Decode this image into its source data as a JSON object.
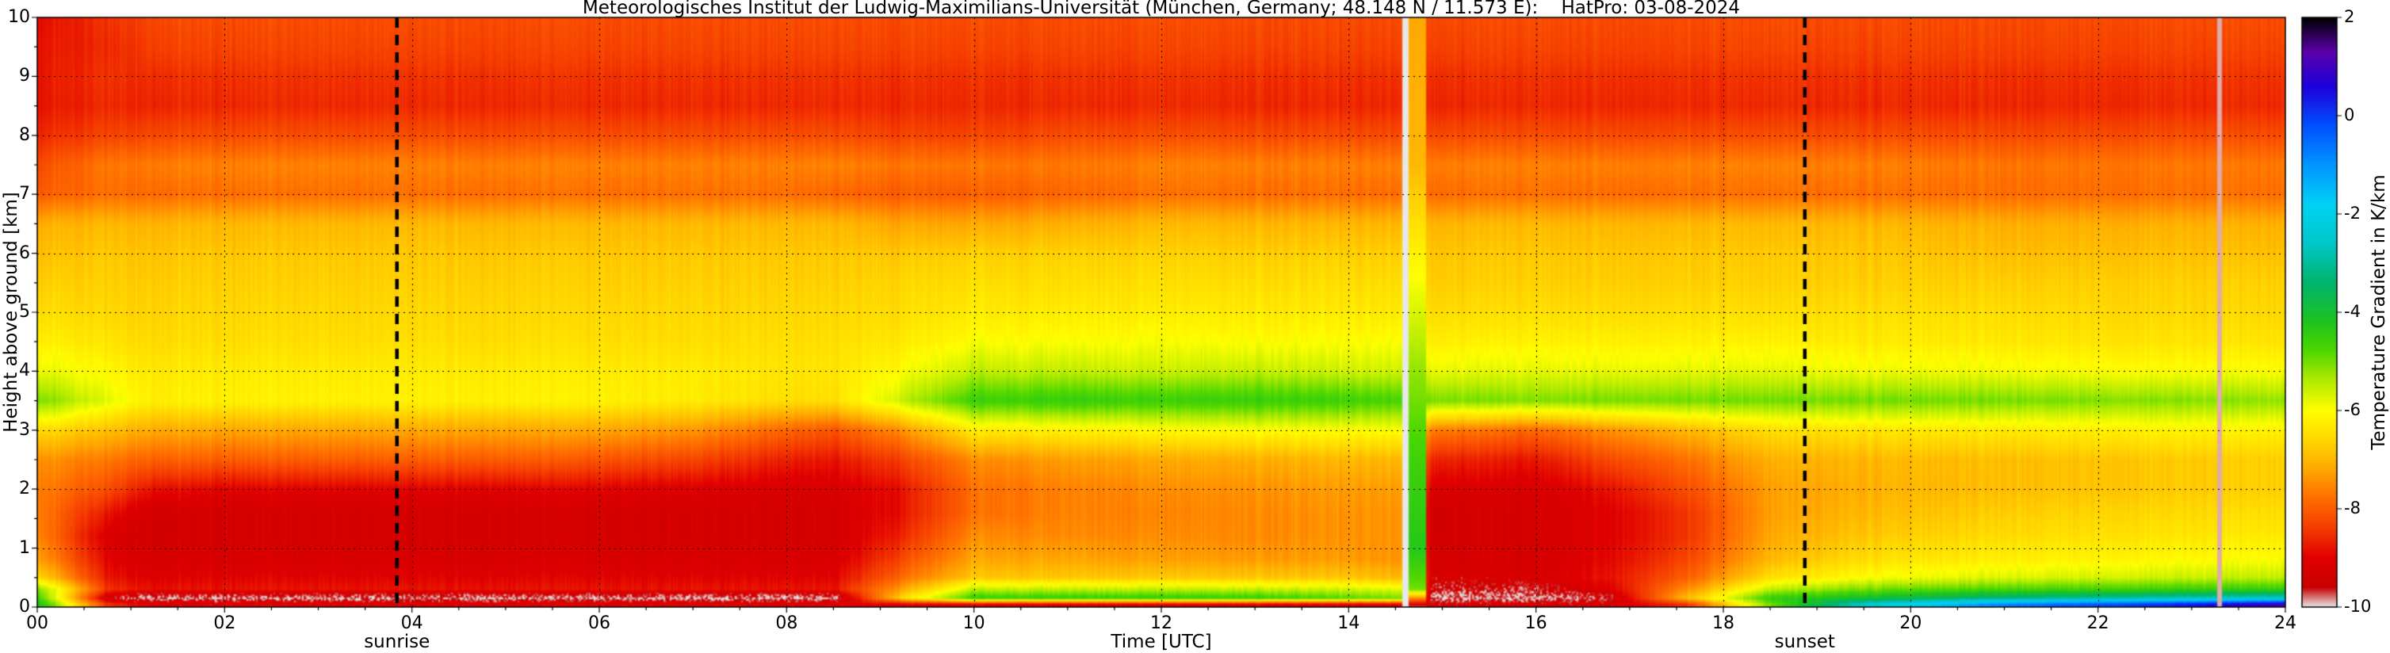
{
  "title": "Meteorologisches Institut der Ludwig-Maximilians-Universität (München, Germany; 48.148 N / 11.573 E):    HatPro: 03-08-2024",
  "x_axis": {
    "label": "Time [UTC]",
    "min": 0,
    "max": 24,
    "tick_values": [
      0,
      2,
      4,
      6,
      8,
      10,
      12,
      14,
      16,
      18,
      20,
      22,
      24
    ],
    "tick_labels": [
      "00",
      "02",
      "04",
      "06",
      "08",
      "10",
      "12",
      "14",
      "16",
      "18",
      "20",
      "22",
      "24"
    ],
    "minor_tick_step": 0.5
  },
  "y_axis": {
    "label": "Height above ground [km]",
    "min": 0,
    "max": 10,
    "tick_values": [
      0,
      1,
      2,
      3,
      4,
      5,
      6,
      7,
      8,
      9,
      10
    ],
    "tick_labels": [
      "0",
      "1",
      "2",
      "3",
      "4",
      "5",
      "6",
      "7",
      "8",
      "9",
      "10"
    ],
    "minor_tick_step": 0.5
  },
  "colorbar": {
    "label": "Temperature Gradient in K/km",
    "min": -10,
    "max": 2,
    "tick_values": [
      2,
      0,
      -2,
      -4,
      -6,
      -8,
      -10
    ],
    "tick_labels": [
      "2",
      "0",
      "-2",
      "-4",
      "-6",
      "-8",
      "-10"
    ]
  },
  "annotations": {
    "sunrise_label": "sunrise",
    "sunrise_time": 3.84,
    "sunset_label": "sunset",
    "sunset_time": 18.87
  },
  "chart_data": {
    "type": "heatmap",
    "x_units": "hours UTC",
    "y_units": "km above ground",
    "value_units": "K/km",
    "grid": {
      "x_step": 2,
      "y_step": 1,
      "style": "dotted"
    },
    "x_hours": [
      0,
      0.75,
      1.25,
      2,
      3,
      4,
      5,
      6,
      7,
      8,
      8.5,
      9.25,
      10,
      11,
      12,
      13,
      14,
      14.6,
      14.9,
      16,
      16.8,
      17.6,
      18.5,
      19.5,
      21,
      22.5,
      24
    ],
    "heights_km": [
      0.05,
      0.15,
      0.3,
      0.5,
      0.8,
      1.2,
      1.6,
      2.0,
      2.5,
      3.0,
      3.5,
      4.0,
      4.5,
      5.0,
      5.5,
      6.0,
      6.5,
      7.0,
      7.5,
      8.0,
      8.5,
      9.0,
      9.5,
      10.0
    ],
    "values_K_per_km": [
      [
        -4.0,
        -8.5,
        -9.0,
        -9.0,
        -9.0,
        -9.0,
        -9.0,
        -9.0,
        -9.0,
        -9.0,
        -9.0,
        -9.0,
        -9.0,
        -9.0,
        -9.0,
        -9.0,
        -9.0,
        -9.0,
        -9.2,
        -9.2,
        -9.2,
        -8.5,
        -5.0,
        -2.5,
        -0.8,
        0.0,
        1.0
      ],
      [
        -4.5,
        -9.5,
        -9.9,
        -9.9,
        -9.9,
        -9.9,
        -9.9,
        -9.9,
        -9.9,
        -9.9,
        -9.9,
        -6.5,
        -4.5,
        -4.5,
        -4.5,
        -4.5,
        -4.8,
        -5.0,
        -9.9,
        -9.9,
        -9.5,
        -7.0,
        -4.5,
        -4.0,
        -3.2,
        -2.8,
        -2.5
      ],
      [
        -5.0,
        -8.5,
        -8.8,
        -8.8,
        -8.8,
        -8.8,
        -8.8,
        -8.8,
        -8.8,
        -8.8,
        -8.8,
        -7.2,
        -5.5,
        -5.5,
        -5.5,
        -5.5,
        -5.6,
        -5.8,
        -9.5,
        -9.5,
        -9.0,
        -7.5,
        -5.5,
        -5.0,
        -4.7,
        -4.6,
        -4.5
      ],
      [
        -6.5,
        -8.8,
        -9.0,
        -9.0,
        -9.0,
        -9.0,
        -9.0,
        -9.0,
        -9.0,
        -9.0,
        -9.0,
        -7.8,
        -6.8,
        -6.8,
        -6.8,
        -6.8,
        -6.8,
        -7.0,
        -9.2,
        -9.2,
        -8.8,
        -8.0,
        -6.5,
        -6.0,
        -5.7,
        -5.6,
        -5.5
      ],
      [
        -7.2,
        -9.0,
        -9.2,
        -9.2,
        -9.2,
        -9.2,
        -9.2,
        -9.2,
        -9.2,
        -9.2,
        -9.2,
        -8.2,
        -7.2,
        -7.2,
        -7.3,
        -7.3,
        -7.3,
        -7.4,
        -9.2,
        -9.3,
        -8.9,
        -8.3,
        -7.0,
        -6.5,
        -6.2,
        -6.1,
        -6.0
      ],
      [
        -7.5,
        -9.2,
        -9.3,
        -9.3,
        -9.3,
        -9.3,
        -9.3,
        -9.3,
        -9.3,
        -9.3,
        -9.3,
        -8.6,
        -7.5,
        -7.5,
        -7.5,
        -7.5,
        -7.4,
        -7.4,
        -9.3,
        -9.3,
        -9.0,
        -8.5,
        -7.2,
        -6.8,
        -6.5,
        -6.4,
        -6.3
      ],
      [
        -7.6,
        -8.8,
        -9.3,
        -9.3,
        -9.3,
        -9.3,
        -9.3,
        -9.3,
        -9.3,
        -9.3,
        -9.3,
        -8.8,
        -7.8,
        -7.6,
        -7.6,
        -7.5,
        -7.4,
        -7.4,
        -9.3,
        -9.3,
        -9.0,
        -8.5,
        -7.3,
        -7.0,
        -6.7,
        -6.6,
        -6.5
      ],
      [
        -7.6,
        -8.2,
        -8.8,
        -9.0,
        -9.0,
        -9.0,
        -9.0,
        -9.0,
        -9.1,
        -9.2,
        -9.2,
        -8.8,
        -7.8,
        -7.6,
        -7.5,
        -7.4,
        -7.3,
        -7.3,
        -9.1,
        -9.2,
        -8.8,
        -8.2,
        -7.3,
        -7.1,
        -6.9,
        -6.8,
        -6.7
      ],
      [
        -7.4,
        -7.7,
        -7.9,
        -8.0,
        -8.0,
        -8.0,
        -8.0,
        -8.1,
        -8.3,
        -8.7,
        -8.8,
        -8.3,
        -7.5,
        -7.3,
        -7.2,
        -7.1,
        -7.0,
        -7.0,
        -8.6,
        -8.8,
        -8.2,
        -7.8,
        -7.1,
        -7.0,
        -6.9,
        -6.8,
        -6.7
      ],
      [
        -6.5,
        -6.9,
        -7.1,
        -7.2,
        -7.2,
        -7.2,
        -7.2,
        -7.2,
        -7.4,
        -7.9,
        -8.1,
        -7.4,
        -6.3,
        -6.2,
        -6.1,
        -6.0,
        -6.0,
        -6.0,
        -7.6,
        -7.9,
        -7.4,
        -7.0,
        -6.5,
        -6.4,
        -6.3,
        -6.2,
        -6.2
      ],
      [
        -5.0,
        -5.8,
        -6.2,
        -6.2,
        -6.2,
        -6.2,
        -6.2,
        -6.2,
        -6.3,
        -6.5,
        -6.5,
        -5.5,
        -4.6,
        -4.5,
        -4.6,
        -4.5,
        -4.6,
        -4.7,
        -5.0,
        -5.1,
        -5.0,
        -5.0,
        -5.0,
        -5.0,
        -5.0,
        -5.1,
        -5.2
      ],
      [
        -5.8,
        -6.1,
        -6.3,
        -6.3,
        -6.3,
        -6.3,
        -6.3,
        -6.3,
        -6.3,
        -6.4,
        -6.4,
        -6.0,
        -5.5,
        -5.5,
        -5.6,
        -5.5,
        -5.6,
        -5.6,
        -5.8,
        -5.8,
        -5.8,
        -5.8,
        -5.8,
        -5.9,
        -5.9,
        -6.0,
        -6.0
      ],
      [
        -6.2,
        -6.4,
        -6.5,
        -6.5,
        -6.5,
        -6.5,
        -6.5,
        -6.5,
        -6.5,
        -6.5,
        -6.5,
        -6.3,
        -6.0,
        -6.0,
        -6.0,
        -6.0,
        -6.0,
        -6.0,
        -6.2,
        -6.2,
        -6.2,
        -6.2,
        -6.2,
        -6.3,
        -6.3,
        -6.4,
        -6.4
      ],
      [
        -6.5,
        -6.6,
        -6.6,
        -6.6,
        -6.6,
        -6.6,
        -6.6,
        -6.6,
        -6.6,
        -6.6,
        -6.6,
        -6.5,
        -6.3,
        -6.3,
        -6.3,
        -6.3,
        -6.3,
        -6.3,
        -6.5,
        -6.5,
        -6.5,
        -6.5,
        -6.5,
        -6.5,
        -6.5,
        -6.6,
        -6.6
      ],
      [
        -6.7,
        -6.7,
        -6.7,
        -6.7,
        -6.7,
        -6.7,
        -6.7,
        -6.7,
        -6.7,
        -6.7,
        -6.7,
        -6.6,
        -6.5,
        -6.5,
        -6.5,
        -6.5,
        -6.5,
        -6.5,
        -6.7,
        -6.7,
        -6.7,
        -6.7,
        -6.7,
        -6.7,
        -6.7,
        -6.7,
        -6.7
      ],
      [
        -6.9,
        -6.8,
        -6.8,
        -6.8,
        -6.8,
        -6.8,
        -6.8,
        -6.8,
        -6.8,
        -6.8,
        -6.8,
        -6.8,
        -6.7,
        -6.7,
        -6.7,
        -6.7,
        -6.7,
        -6.7,
        -6.8,
        -6.8,
        -6.8,
        -6.8,
        -6.8,
        -6.8,
        -6.9,
        -6.9,
        -6.9
      ],
      [
        -7.1,
        -7.0,
        -7.0,
        -7.0,
        -7.0,
        -7.0,
        -7.0,
        -7.0,
        -7.0,
        -7.0,
        -7.0,
        -7.2,
        -7.2,
        -7.1,
        -7.0,
        -7.0,
        -7.0,
        -7.0,
        -7.0,
        -7.0,
        -7.0,
        -7.0,
        -7.0,
        -7.0,
        -7.1,
        -7.1,
        -7.1
      ],
      [
        -8.0,
        -7.8,
        -7.8,
        -7.8,
        -7.8,
        -7.8,
        -7.8,
        -7.8,
        -7.8,
        -7.8,
        -7.9,
        -8.0,
        -8.0,
        -7.9,
        -7.8,
        -7.8,
        -7.8,
        -7.8,
        -7.8,
        -7.8,
        -7.8,
        -7.8,
        -7.8,
        -7.8,
        -7.8,
        -7.8,
        -7.8
      ],
      [
        -8.2,
        -7.7,
        -7.6,
        -7.6,
        -7.6,
        -7.6,
        -7.6,
        -7.6,
        -7.6,
        -7.6,
        -7.6,
        -7.7,
        -7.7,
        -7.7,
        -7.6,
        -7.6,
        -7.6,
        -7.6,
        -7.6,
        -7.6,
        -7.6,
        -7.6,
        -7.6,
        -7.6,
        -7.7,
        -7.7,
        -7.7
      ],
      [
        -8.6,
        -8.3,
        -8.2,
        -8.2,
        -8.2,
        -8.2,
        -8.2,
        -8.2,
        -8.2,
        -8.2,
        -8.2,
        -8.3,
        -8.3,
        -8.2,
        -8.2,
        -8.2,
        -8.2,
        -8.2,
        -8.2,
        -8.2,
        -8.2,
        -8.2,
        -8.2,
        -8.2,
        -8.2,
        -8.2,
        -8.2
      ],
      [
        -8.8,
        -8.6,
        -8.6,
        -8.6,
        -8.6,
        -8.6,
        -8.6,
        -8.6,
        -8.6,
        -8.6,
        -8.6,
        -8.6,
        -8.6,
        -8.6,
        -8.6,
        -8.6,
        -8.6,
        -8.6,
        -8.6,
        -8.6,
        -8.6,
        -8.6,
        -8.6,
        -8.6,
        -8.6,
        -8.6,
        -8.6
      ],
      [
        -8.8,
        -8.5,
        -8.5,
        -8.5,
        -8.5,
        -8.5,
        -8.5,
        -8.5,
        -8.5,
        -8.5,
        -8.5,
        -8.5,
        -8.5,
        -8.5,
        -8.5,
        -8.5,
        -8.5,
        -8.5,
        -8.5,
        -8.5,
        -8.5,
        -8.5,
        -8.5,
        -8.5,
        -8.5,
        -8.5,
        -8.5
      ],
      [
        -8.8,
        -8.6,
        -8.3,
        -8.3,
        -8.3,
        -8.3,
        -8.3,
        -8.3,
        -8.3,
        -8.3,
        -8.3,
        -8.3,
        -8.3,
        -8.3,
        -8.3,
        -8.3,
        -8.3,
        -8.3,
        -8.3,
        -8.3,
        -8.3,
        -8.3,
        -8.3,
        -8.3,
        -8.3,
        -8.3,
        -8.3
      ],
      [
        -8.9,
        -8.5,
        -8.2,
        -8.2,
        -8.2,
        -8.2,
        -8.2,
        -8.2,
        -8.2,
        -8.2,
        -8.2,
        -8.2,
        -8.2,
        -8.2,
        -8.2,
        -8.2,
        -8.2,
        -8.2,
        -8.2,
        -8.2,
        -8.2,
        -8.2,
        -8.2,
        -8.2,
        -8.2,
        -8.2,
        -8.2
      ]
    ],
    "anomaly_columns": [
      {
        "t0": 14.58,
        "t1": 14.64,
        "value": -10
      },
      {
        "t0": 14.64,
        "t1": 14.82,
        "profile": [
          [
            0,
            -9.9
          ],
          [
            0.3,
            -5.0
          ],
          [
            1.0,
            -4.3
          ],
          [
            2.5,
            -4.6
          ],
          [
            4.0,
            -5.2
          ],
          [
            6.0,
            -6.2
          ],
          [
            7.5,
            -7.0
          ],
          [
            10,
            -7.2
          ]
        ]
      },
      {
        "t0": 23.28,
        "t1": 23.33,
        "value": -9.9
      }
    ],
    "colormap_stops": [
      [
        -10.0,
        "#e8e8e8"
      ],
      [
        -9.6,
        "#c80000"
      ],
      [
        -9.0,
        "#e10000"
      ],
      [
        -8.4,
        "#f53c00"
      ],
      [
        -7.8,
        "#ff6e00"
      ],
      [
        -7.2,
        "#ffa800"
      ],
      [
        -6.6,
        "#ffd800"
      ],
      [
        -6.0,
        "#ffff00"
      ],
      [
        -5.4,
        "#b4ec00"
      ],
      [
        -4.8,
        "#50d800"
      ],
      [
        -4.2,
        "#1ec41e"
      ],
      [
        -3.4,
        "#00b46e"
      ],
      [
        -2.6,
        "#00c8c8"
      ],
      [
        -1.8,
        "#00d2f5"
      ],
      [
        -1.0,
        "#0096ff"
      ],
      [
        -0.2,
        "#0050ff"
      ],
      [
        0.6,
        "#1e00dc"
      ],
      [
        1.3,
        "#5a00aa"
      ],
      [
        2.0,
        "#000000"
      ]
    ]
  }
}
